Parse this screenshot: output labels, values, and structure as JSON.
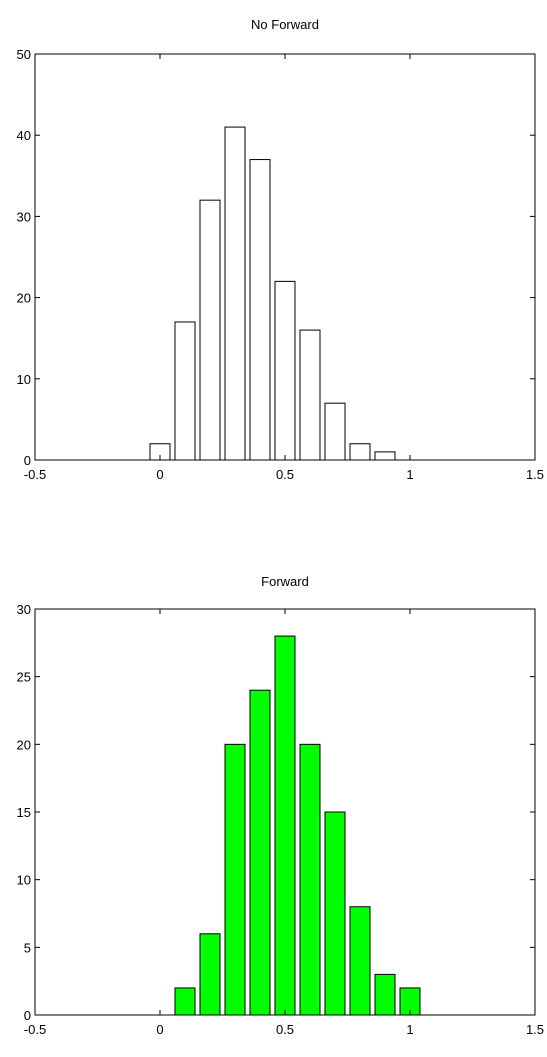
{
  "chart_data": [
    {
      "type": "bar",
      "title": "No Forward",
      "xlabel": "",
      "ylabel": "",
      "xlim": [
        -0.5,
        1.5
      ],
      "ylim": [
        0,
        50
      ],
      "x": [
        0,
        0.1,
        0.2,
        0.3,
        0.4,
        0.5,
        0.6,
        0.7,
        0.8,
        0.9
      ],
      "values": [
        2,
        17,
        32,
        41,
        37,
        22,
        16,
        7,
        2,
        1
      ],
      "bar_width": 0.08,
      "xticks": [
        -0.5,
        0,
        0.5,
        1,
        1.5
      ],
      "xtick_labels": [
        "-0.5",
        "0",
        "0.5",
        "1",
        "1.5"
      ],
      "yticks": [
        0,
        10,
        20,
        30,
        40,
        50
      ],
      "ytick_labels": [
        "0",
        "10",
        "20",
        "30",
        "40",
        "50"
      ],
      "grid": false,
      "bar_color": "#ffffff",
      "edge_color": "#000000"
    },
    {
      "type": "bar",
      "title": "Forward",
      "xlabel": "",
      "ylabel": "",
      "xlim": [
        -0.5,
        1.5
      ],
      "ylim": [
        0,
        30
      ],
      "x": [
        0.1,
        0.2,
        0.3,
        0.4,
        0.5,
        0.6,
        0.7,
        0.8,
        0.9,
        1.0
      ],
      "values": [
        2,
        6,
        20,
        24,
        28,
        20,
        15,
        8,
        3,
        2
      ],
      "bar_width": 0.08,
      "xticks": [
        -0.5,
        0,
        0.5,
        1,
        1.5
      ],
      "xtick_labels": [
        "-0.5",
        "0",
        "0.5",
        "1",
        "1.5"
      ],
      "yticks": [
        0,
        5,
        10,
        15,
        20,
        25,
        30
      ],
      "ytick_labels": [
        "0",
        "5",
        "10",
        "15",
        "20",
        "25",
        "30"
      ],
      "grid": false,
      "bar_color": "#00ff00",
      "edge_color": "#000000"
    }
  ]
}
